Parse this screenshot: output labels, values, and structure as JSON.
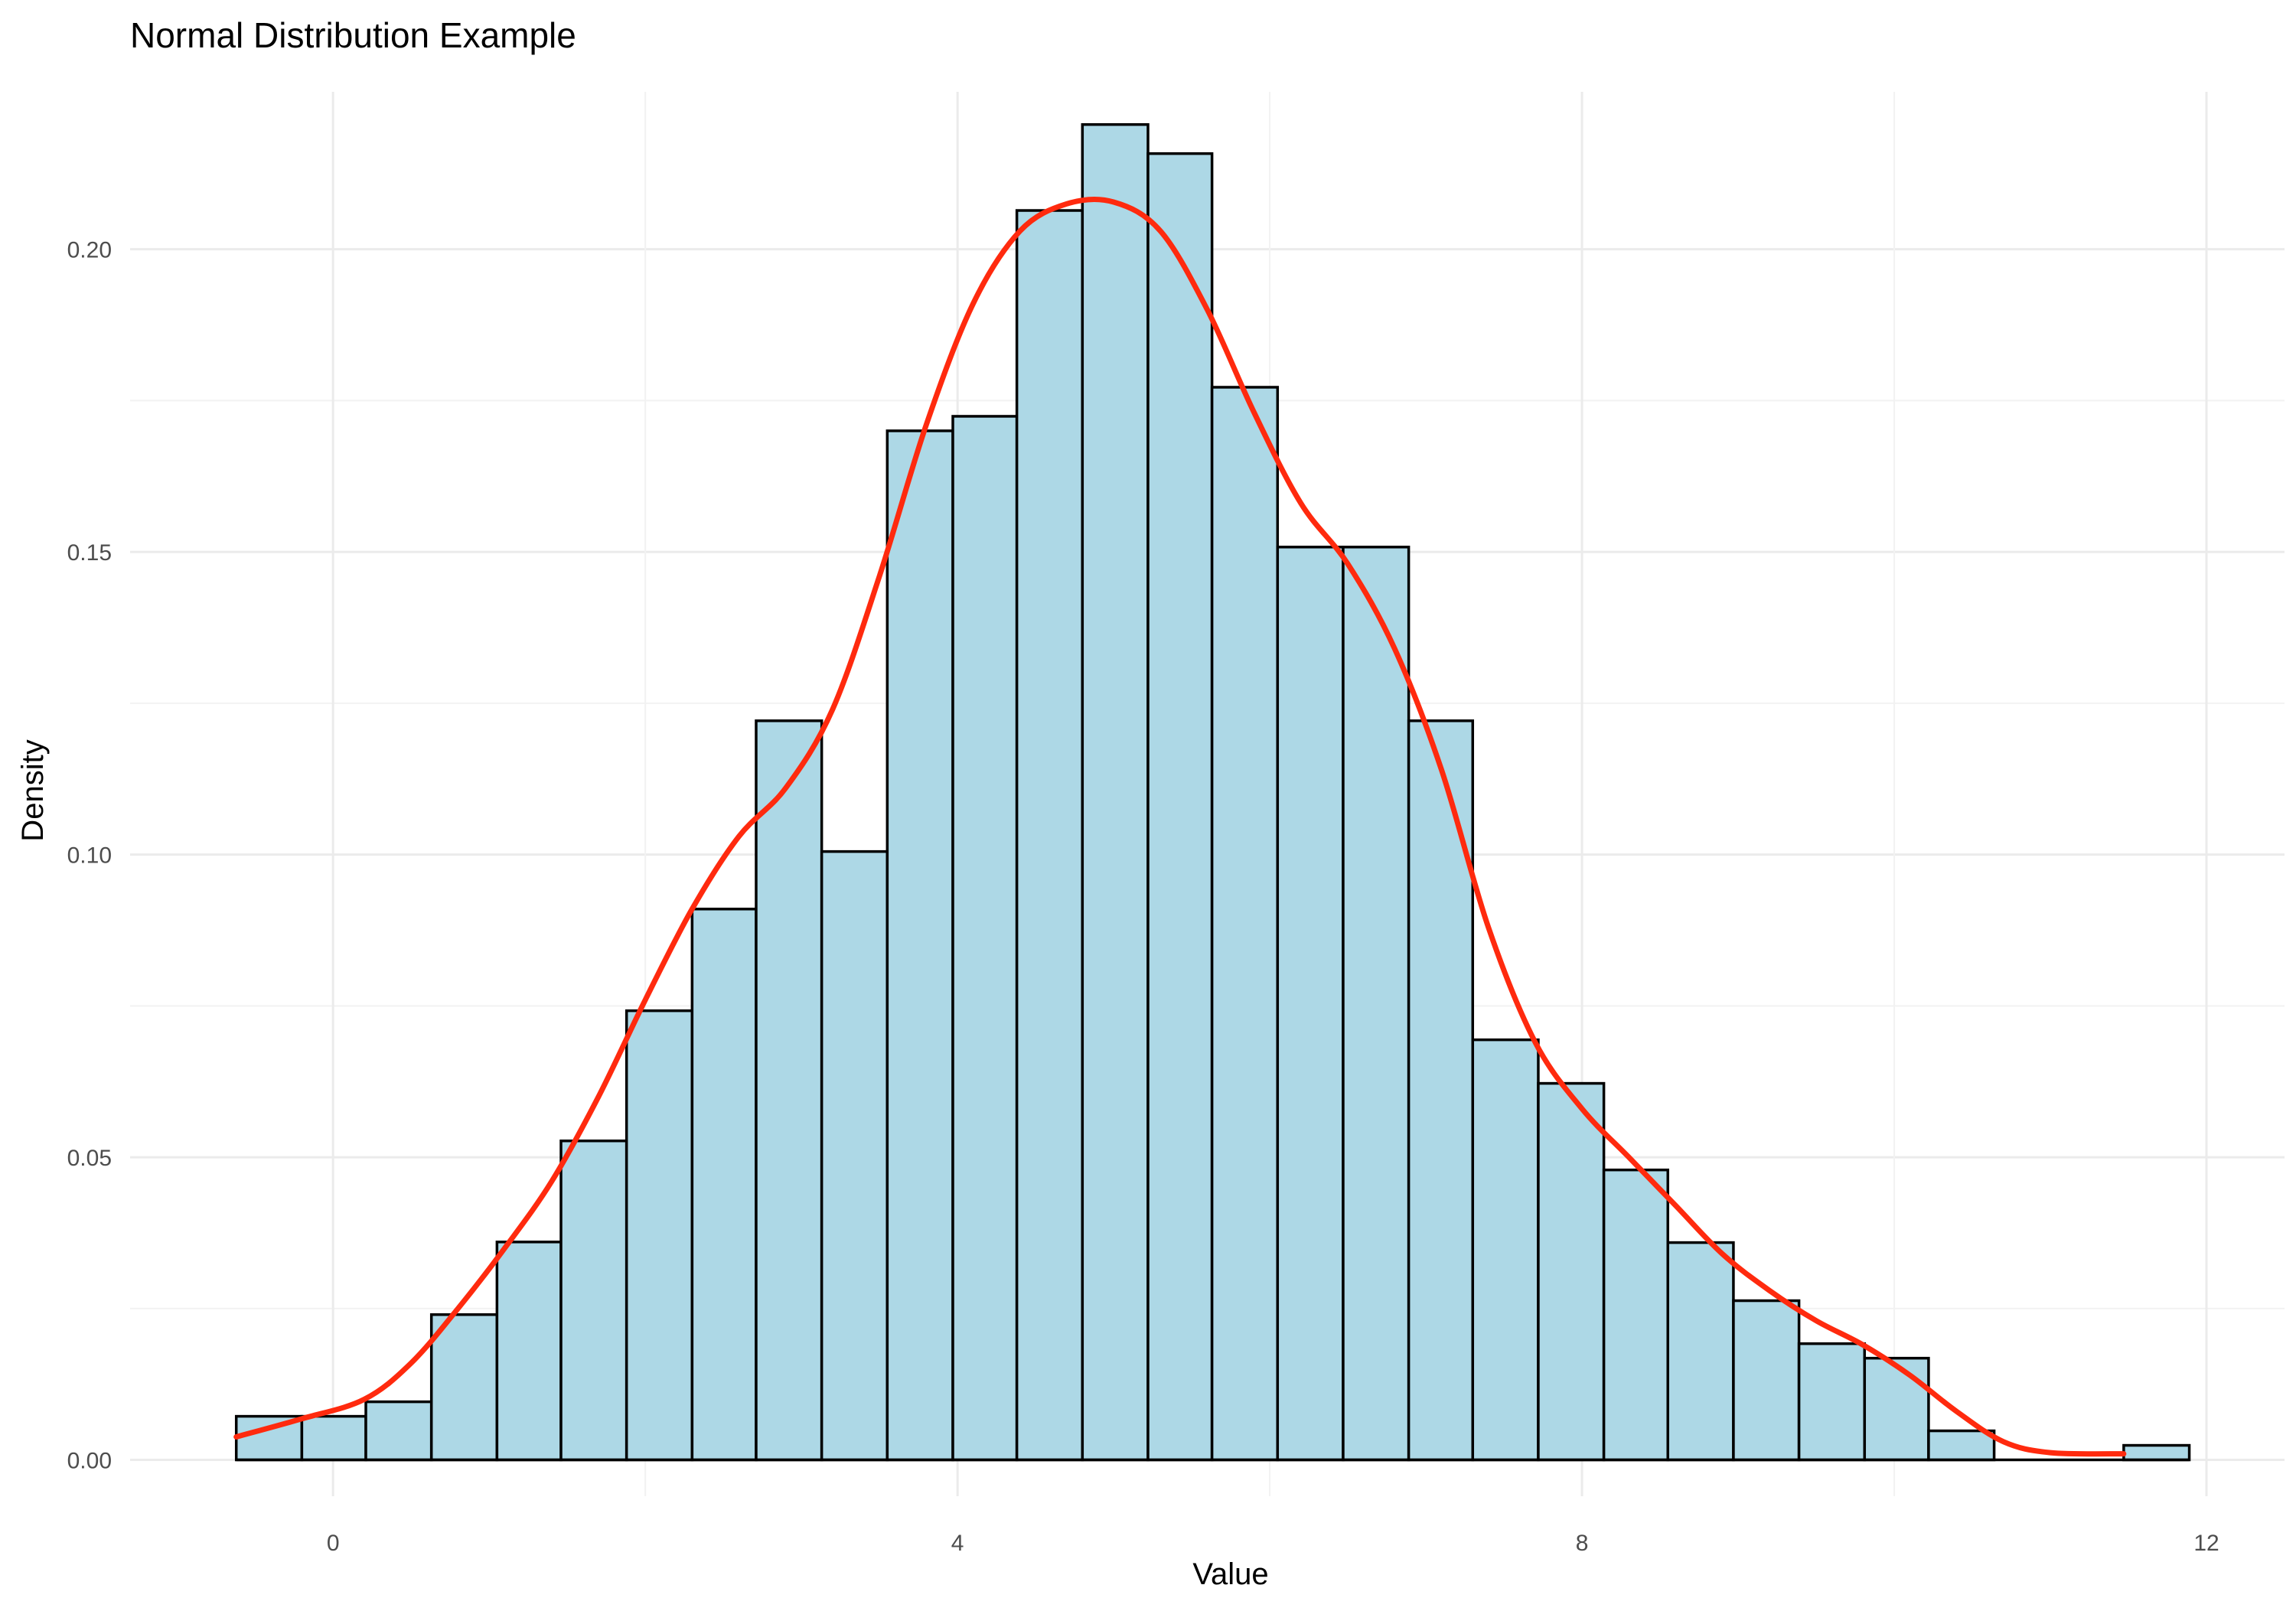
{
  "chart_data": {
    "type": "bar",
    "title": "Normal Distribution Example",
    "xlabel": "Value",
    "ylabel": "Density",
    "xlim": [
      -1.3,
      12.5
    ],
    "ylim": [
      -0.006,
      0.226
    ],
    "x_ticks": [
      0,
      4,
      8,
      12
    ],
    "x_tick_labels": [
      "0",
      "4",
      "8",
      "12"
    ],
    "y_ticks": [
      0.0,
      0.05,
      0.1,
      0.15,
      0.2
    ],
    "y_tick_labels": [
      "0.00",
      "0.05",
      "0.10",
      "0.15",
      "0.20"
    ],
    "grid": true,
    "legend": "none",
    "bar_fill": "#add8e6",
    "bar_outline": "#000000",
    "density_color": "#ff2a0e",
    "bin_edges": [
      -0.62,
      -0.2,
      0.21,
      0.63,
      1.05,
      1.46,
      1.88,
      2.3,
      2.71,
      3.13,
      3.55,
      3.97,
      4.38,
      4.8,
      5.22,
      5.63,
      6.05,
      6.47,
      6.89,
      7.3,
      7.72,
      8.14,
      8.55,
      8.97,
      9.39,
      9.81,
      10.22,
      10.64,
      11.06,
      11.47,
      11.89
    ],
    "bin_values": [
      0.0072,
      0.0072,
      0.0096,
      0.024,
      0.036,
      0.0527,
      0.0742,
      0.091,
      0.1221,
      0.1005,
      0.17,
      0.1724,
      0.2064,
      0.2206,
      0.2158,
      0.1772,
      0.1508,
      0.1508,
      0.1221,
      0.0694,
      0.0622,
      0.0479,
      0.0359,
      0.0263,
      0.0192,
      0.0168,
      0.0048,
      0.0,
      0.0,
      0.0024
    ],
    "density_curve": {
      "x": [
        -0.62,
        -0.2,
        0.2,
        0.5,
        0.8,
        1.1,
        1.4,
        1.7,
        2.0,
        2.3,
        2.6,
        2.9,
        3.2,
        3.5,
        3.8,
        4.1,
        4.4,
        4.7,
        5.0,
        5.3,
        5.6,
        5.9,
        6.2,
        6.5,
        6.8,
        7.1,
        7.4,
        7.7,
        8.0,
        8.3,
        8.6,
        8.9,
        9.2,
        9.5,
        9.8,
        10.1,
        10.4,
        10.7,
        11.0,
        11.47
      ],
      "y": [
        0.0038,
        0.0068,
        0.01,
        0.016,
        0.025,
        0.035,
        0.046,
        0.06,
        0.076,
        0.091,
        0.103,
        0.111,
        0.124,
        0.146,
        0.171,
        0.191,
        0.203,
        0.2075,
        0.2078,
        0.203,
        0.19,
        0.173,
        0.158,
        0.148,
        0.134,
        0.114,
        0.088,
        0.069,
        0.058,
        0.05,
        0.042,
        0.034,
        0.028,
        0.023,
        0.019,
        0.014,
        0.008,
        0.003,
        0.0012,
        0.001
      ]
    }
  }
}
